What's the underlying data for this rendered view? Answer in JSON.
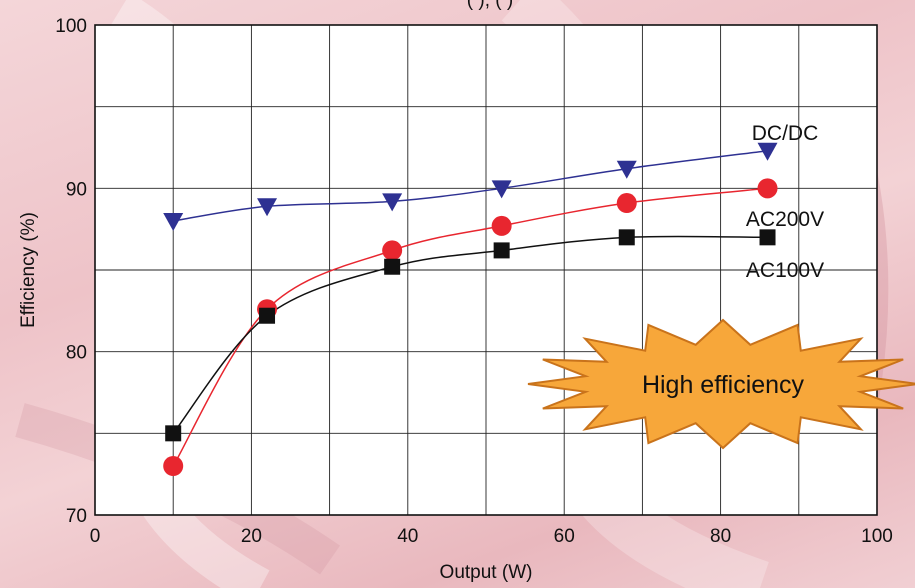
{
  "chart_data": {
    "type": "line",
    "top_title_fragment": "(        ),        (        )",
    "xlabel": "Output (W)",
    "ylabel": "Efficiency (%)",
    "xlim": [
      0,
      100
    ],
    "ylim": [
      70,
      100
    ],
    "x_ticks": [
      "0",
      "20",
      "40",
      "60",
      "80",
      "100"
    ],
    "y_ticks": [
      "70",
      "80",
      "90",
      "100"
    ],
    "grid": true,
    "series": [
      {
        "name": "DC/DC",
        "marker": "triangle-down",
        "color": "#2e3192",
        "x": [
          10,
          22,
          38,
          52,
          68,
          86
        ],
        "y": [
          88.0,
          88.9,
          89.2,
          90.0,
          91.2,
          92.3
        ]
      },
      {
        "name": "AC200V",
        "marker": "circle",
        "color": "#e8262f",
        "x": [
          10,
          22,
          38,
          52,
          68,
          86
        ],
        "y": [
          73.0,
          82.6,
          86.2,
          87.7,
          89.1,
          90.0
        ]
      },
      {
        "name": "AC100V",
        "marker": "square",
        "color": "#111111",
        "x": [
          10,
          22,
          38,
          52,
          68,
          86
        ],
        "y": [
          75.0,
          82.2,
          85.2,
          86.2,
          87.0,
          87.0
        ]
      }
    ],
    "annotation": {
      "text": "High efficiency",
      "fill": "#f7a73a",
      "stroke": "#c9731b"
    }
  }
}
